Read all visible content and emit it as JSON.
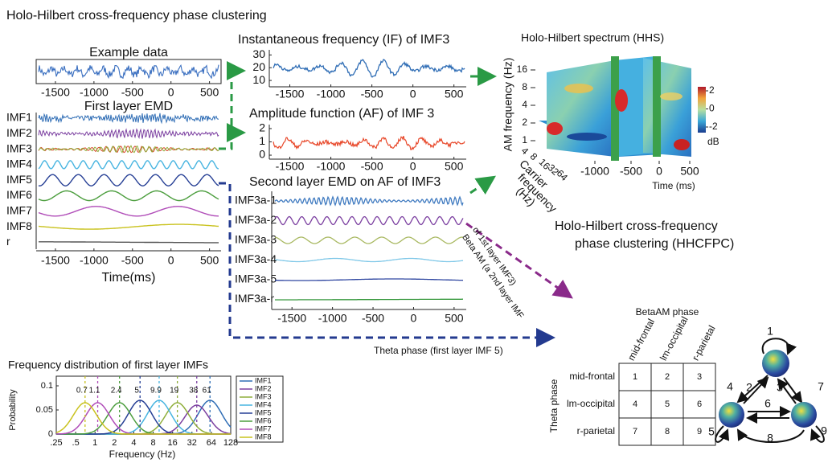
{
  "title": "Holo-Hilbert cross-frequency phase clustering",
  "example": {
    "title": "Example data",
    "xlim": [
      -1750,
      650
    ],
    "xticks": [
      -1500,
      -1000,
      -500,
      0,
      500
    ]
  },
  "first_layer": {
    "title": "First layer EMD",
    "labels": [
      "IMF1",
      "IMF2",
      "IMF3",
      "IMF4",
      "IMF5",
      "IMF6",
      "IMF7",
      "IMF8",
      "r"
    ],
    "xlim": [
      -1750,
      650
    ],
    "xticks": [
      -1500,
      -1000,
      -500,
      0,
      500
    ],
    "xlabel": "Time(ms)"
  },
  "if_panel": {
    "title": "Instantaneous frequency (IF) of IMF3",
    "xlim": [
      -1750,
      650
    ],
    "xticks": [
      -1500,
      -1000,
      -500,
      0,
      500
    ],
    "ylim": [
      5,
      34
    ],
    "yticks": [
      10,
      20,
      30
    ]
  },
  "af_panel": {
    "title": "Amplitude function (AF) of IMF 3",
    "xlim": [
      -1750,
      650
    ],
    "xticks": [
      -1500,
      -1000,
      -500,
      0,
      500
    ],
    "ylim": [
      -0.3,
      2.3
    ],
    "yticks": [
      0,
      1,
      2
    ]
  },
  "second_layer": {
    "title": "Second layer EMD on AF of IMF3",
    "labels": [
      "IMF3a-1",
      "IMF3a-2",
      "IMF3a-3",
      "IMF3a-4",
      "IMF3a-5",
      "IMF3a-r"
    ],
    "xlim": [
      -1750,
      650
    ],
    "xticks": [
      -1500,
      -1000,
      -500,
      0,
      500
    ]
  },
  "hhs": {
    "title": "Holo-Hilbert spectrum (HHS)",
    "ylabel": "AM frequency (Hz)",
    "yticks": [
      1,
      2,
      4,
      8,
      16
    ],
    "carrier_label": [
      "Carrier",
      "frequency",
      "(Hz)"
    ],
    "carrier_ticks": [
      4,
      8,
      16,
      32,
      64
    ],
    "xticks": [
      -1000,
      -500,
      0,
      500
    ],
    "xlabel": "Time (ms)",
    "colorbar_ticks": [
      2,
      0,
      -2
    ],
    "colorbar_unit": "dB"
  },
  "hhcfpc_title": [
    "Holo-Hilbert cross-frequency",
    "phase clustering (HHCFPC)"
  ],
  "beta_am_label": [
    "Beta AM (a 2nd layer IMF",
    "of 1st layer IMF3)"
  ],
  "theta_label": "Theta phase (first layer IMF 5)",
  "chart_data": {
    "type": "line",
    "title": "Frequency distribution of first layer IMFs",
    "xlabel": "Frequency (Hz)",
    "ylabel": "Probability",
    "log_x": true,
    "xlim": [
      0.25,
      128
    ],
    "xticks": [
      {
        "value": 0.25,
        "label": ".25"
      },
      {
        "value": 0.5,
        "label": ".5"
      },
      1,
      2,
      4,
      8,
      16,
      32,
      64,
      128
    ],
    "ylim": [
      0,
      0.12
    ],
    "yticks": [
      0,
      0.05,
      0.1
    ],
    "series": [
      {
        "name": "IMF1",
        "color": "#2f6db5",
        "peak": 61,
        "height": 0.07
      },
      {
        "name": "IMF2",
        "color": "#7b3fa0",
        "peak": 38,
        "height": 0.06
      },
      {
        "name": "IMF3",
        "color": "#8fae3a",
        "peak": 19,
        "height": 0.065
      },
      {
        "name": "IMF4",
        "color": "#47b4e0",
        "peak": 9.9,
        "height": 0.07
      },
      {
        "name": "IMF5",
        "color": "#263f95",
        "peak": 5,
        "height": 0.07
      },
      {
        "name": "IMF6",
        "color": "#4c9e3e",
        "peak": 2.4,
        "height": 0.065
      },
      {
        "name": "IMF7",
        "color": "#b04cb8",
        "peak": 1.1,
        "height": 0.065
      },
      {
        "name": "IMF8",
        "color": "#c9c21e",
        "peak": 0.7,
        "height": 0.065
      }
    ]
  },
  "matrix": {
    "column_title": "BetaAM phase",
    "row_title": "Theta phase",
    "columns": [
      "mid-frontal",
      "lm-occipital",
      "r-parietal"
    ],
    "rows": [
      "mid-frontal",
      "lm-occipital",
      "r-parietal"
    ],
    "cells": [
      [
        1,
        2,
        3
      ],
      [
        4,
        5,
        6
      ],
      [
        7,
        8,
        9
      ]
    ]
  },
  "network": {
    "edge_labels": [
      "1",
      "2",
      "3",
      "4",
      "5",
      "6",
      "7",
      "8",
      "9"
    ]
  }
}
